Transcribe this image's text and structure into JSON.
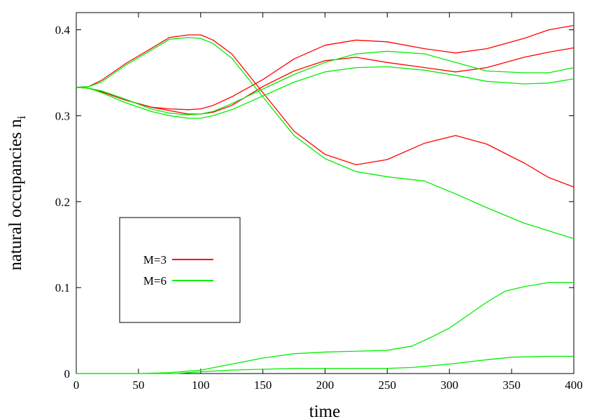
{
  "chart_data": {
    "type": "line",
    "xlabel": "time",
    "ylabel": "natural occupancies n",
    "ylabel_subscript": "i",
    "xlim": [
      0,
      400
    ],
    "ylim": [
      0,
      0.42
    ],
    "xticks": [
      0,
      50,
      100,
      150,
      200,
      250,
      300,
      350,
      400
    ],
    "yticks": [
      0,
      0.1,
      0.2,
      0.3,
      0.4
    ],
    "xtick_labels": [
      "0",
      "50",
      "100",
      "150",
      "200",
      "250",
      "300",
      "350",
      "400"
    ],
    "ytick_labels": [
      "0",
      "0.1",
      "0.2",
      "0.3",
      "0.4"
    ],
    "grid": false,
    "legend_position": "center-left",
    "legend": [
      {
        "label": "M=3",
        "color": "#ff0000"
      },
      {
        "label": "M=6",
        "color": "#00ee00"
      }
    ],
    "series": [
      {
        "name": "M=3",
        "color": "#ff0000",
        "x": [
          0,
          10,
          20,
          40,
          60,
          75,
          90,
          100,
          110,
          125,
          150,
          175,
          200,
          225,
          250,
          280,
          305,
          330,
          360,
          380,
          400
        ],
        "y": [
          0.333,
          0.334,
          0.341,
          0.361,
          0.378,
          0.391,
          0.394,
          0.394,
          0.388,
          0.372,
          0.327,
          0.282,
          0.255,
          0.243,
          0.249,
          0.268,
          0.277,
          0.267,
          0.245,
          0.228,
          0.217
        ]
      },
      {
        "name": "M=3",
        "color": "#ff0000",
        "x": [
          0,
          10,
          20,
          40,
          60,
          75,
          90,
          100,
          110,
          125,
          150,
          175,
          200,
          225,
          250,
          280,
          305,
          330,
          360,
          380,
          400
        ],
        "y": [
          0.333,
          0.332,
          0.328,
          0.318,
          0.31,
          0.308,
          0.307,
          0.308,
          0.312,
          0.322,
          0.342,
          0.366,
          0.382,
          0.388,
          0.386,
          0.378,
          0.373,
          0.378,
          0.39,
          0.4,
          0.405
        ]
      },
      {
        "name": "M=3",
        "color": "#ff0000",
        "x": [
          0,
          10,
          20,
          40,
          60,
          75,
          90,
          100,
          110,
          125,
          150,
          175,
          200,
          225,
          250,
          280,
          305,
          330,
          360,
          380,
          400
        ],
        "y": [
          0.333,
          0.332,
          0.328,
          0.318,
          0.31,
          0.306,
          0.302,
          0.302,
          0.304,
          0.312,
          0.334,
          0.352,
          0.364,
          0.368,
          0.362,
          0.356,
          0.351,
          0.356,
          0.368,
          0.374,
          0.379
        ]
      },
      {
        "name": "M=6",
        "color": "#00ee00",
        "x": [
          0,
          10,
          20,
          40,
          60,
          75,
          90,
          100,
          110,
          125,
          150,
          175,
          200,
          225,
          250,
          280,
          305,
          330,
          360,
          380,
          400
        ],
        "y": [
          0.333,
          0.334,
          0.339,
          0.359,
          0.376,
          0.389,
          0.391,
          0.39,
          0.384,
          0.367,
          0.322,
          0.277,
          0.25,
          0.235,
          0.229,
          0.224,
          0.209,
          0.193,
          0.175,
          0.166,
          0.157
        ]
      },
      {
        "name": "M=6",
        "color": "#00ee00",
        "x": [
          0,
          10,
          20,
          40,
          60,
          75,
          90,
          100,
          110,
          125,
          150,
          175,
          200,
          225,
          250,
          280,
          305,
          330,
          360,
          380,
          400
        ],
        "y": [
          0.333,
          0.332,
          0.329,
          0.319,
          0.308,
          0.303,
          0.301,
          0.302,
          0.305,
          0.314,
          0.331,
          0.348,
          0.362,
          0.372,
          0.375,
          0.372,
          0.362,
          0.352,
          0.35,
          0.35,
          0.356
        ]
      },
      {
        "name": "M=6",
        "color": "#00ee00",
        "x": [
          0,
          10,
          20,
          40,
          60,
          75,
          90,
          100,
          110,
          125,
          150,
          175,
          200,
          225,
          250,
          280,
          305,
          330,
          360,
          380,
          400
        ],
        "y": [
          0.333,
          0.332,
          0.327,
          0.315,
          0.305,
          0.3,
          0.297,
          0.297,
          0.3,
          0.307,
          0.323,
          0.339,
          0.351,
          0.356,
          0.357,
          0.353,
          0.347,
          0.34,
          0.337,
          0.338,
          0.343
        ]
      },
      {
        "name": "M=6",
        "color": "#00ee00",
        "x": [
          0,
          50,
          75,
          100,
          125,
          150,
          175,
          200,
          225,
          250,
          270,
          285,
          300,
          315,
          330,
          345,
          360,
          380,
          400
        ],
        "y": [
          0,
          0,
          0.001,
          0.004,
          0.011,
          0.018,
          0.023,
          0.025,
          0.026,
          0.027,
          0.032,
          0.042,
          0.053,
          0.068,
          0.083,
          0.096,
          0.101,
          0.106,
          0.106
        ]
      },
      {
        "name": "M=6",
        "color": "#00ee00",
        "x": [
          0,
          60,
          80,
          100,
          125,
          150,
          175,
          200,
          225,
          250,
          270,
          300,
          330,
          350,
          380,
          400
        ],
        "y": [
          0,
          0,
          0,
          0.002,
          0.004,
          0.005,
          0.006,
          0.006,
          0.006,
          0.006,
          0.007,
          0.011,
          0.016,
          0.019,
          0.02,
          0.02
        ]
      }
    ]
  }
}
